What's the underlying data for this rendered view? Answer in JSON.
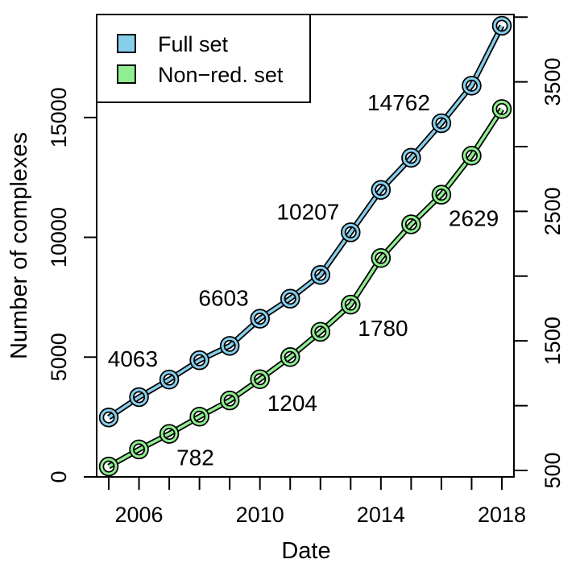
{
  "chart_data": {
    "type": "line",
    "xlabel": "Date",
    "ylabel": "Number of complexes",
    "x": [
      2005,
      2006,
      2007,
      2008,
      2009,
      2010,
      2011,
      2012,
      2013,
      2014,
      2015,
      2016,
      2017,
      2018
    ],
    "xlim": [
      2004.6,
      2018.4
    ],
    "x_ticks": [
      2006,
      2010,
      2014,
      2018
    ],
    "grid": false,
    "legend_position": "top-left",
    "axes": {
      "left": {
        "ylim": [
          0,
          19300
        ],
        "ticks": [
          0,
          5000,
          10000,
          15000
        ]
      },
      "right": {
        "ylim": [
          450,
          4020
        ],
        "ticks": [
          500,
          1500,
          2500,
          3500
        ]
      }
    },
    "series": [
      {
        "name": "Full set",
        "axis": "left",
        "color": "#87ceeb",
        "values": [
          2480,
          3330,
          4063,
          4870,
          5470,
          6603,
          7440,
          8430,
          10207,
          11980,
          13320,
          14762,
          16330,
          18830
        ]
      },
      {
        "name": "Non−red. set",
        "axis": "right",
        "color": "#90ee90",
        "values": [
          530,
          662,
          782,
          915,
          1040,
          1204,
          1375,
          1570,
          1780,
          2140,
          2400,
          2629,
          2930,
          3290
        ]
      }
    ],
    "data_labels": [
      {
        "series": 0,
        "index": 2,
        "text": "4063",
        "pos": "above-left"
      },
      {
        "series": 0,
        "index": 5,
        "text": "6603",
        "pos": "above-left"
      },
      {
        "series": 0,
        "index": 8,
        "text": "10207",
        "pos": "above-left"
      },
      {
        "series": 0,
        "index": 11,
        "text": "14762",
        "pos": "above-left"
      },
      {
        "series": 1,
        "index": 2,
        "text": "782",
        "pos": "below-right"
      },
      {
        "series": 1,
        "index": 5,
        "text": "1204",
        "pos": "below-right"
      },
      {
        "series": 1,
        "index": 8,
        "text": "1780",
        "pos": "below-right"
      },
      {
        "series": 1,
        "index": 11,
        "text": "2629",
        "pos": "below-right"
      }
    ]
  }
}
